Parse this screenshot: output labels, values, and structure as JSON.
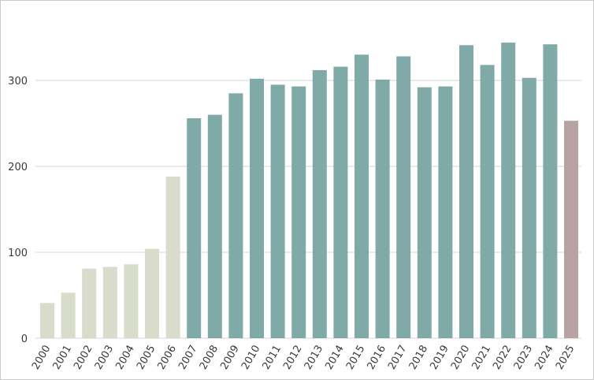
{
  "chart_data": {
    "type": "bar",
    "title": "",
    "xlabel": "",
    "ylabel": "",
    "ylim": [
      0,
      360
    ],
    "yticks": [
      0,
      100,
      200,
      300
    ],
    "grid": true,
    "categories": [
      "2000",
      "2001",
      "2002",
      "2003",
      "2004",
      "2005",
      "2006",
      "2007",
      "2008",
      "2009",
      "2010",
      "2011",
      "2012",
      "2013",
      "2014",
      "2015",
      "2016",
      "2017",
      "2018",
      "2019",
      "2020",
      "2021",
      "2022",
      "2023",
      "2024",
      "2025"
    ],
    "values": [
      41,
      53,
      81,
      83,
      86,
      104,
      188,
      256,
      260,
      285,
      302,
      295,
      293,
      312,
      316,
      330,
      301,
      328,
      292,
      293,
      341,
      318,
      344,
      303,
      342,
      253
    ],
    "bar_colors": {
      "early": "#d8dccb",
      "main": "#7faaa8",
      "latest": "#b8a3a2"
    },
    "color_groups": [
      "early",
      "early",
      "early",
      "early",
      "early",
      "early",
      "early",
      "main",
      "main",
      "main",
      "main",
      "main",
      "main",
      "main",
      "main",
      "main",
      "main",
      "main",
      "main",
      "main",
      "main",
      "main",
      "main",
      "main",
      "main",
      "latest"
    ]
  }
}
